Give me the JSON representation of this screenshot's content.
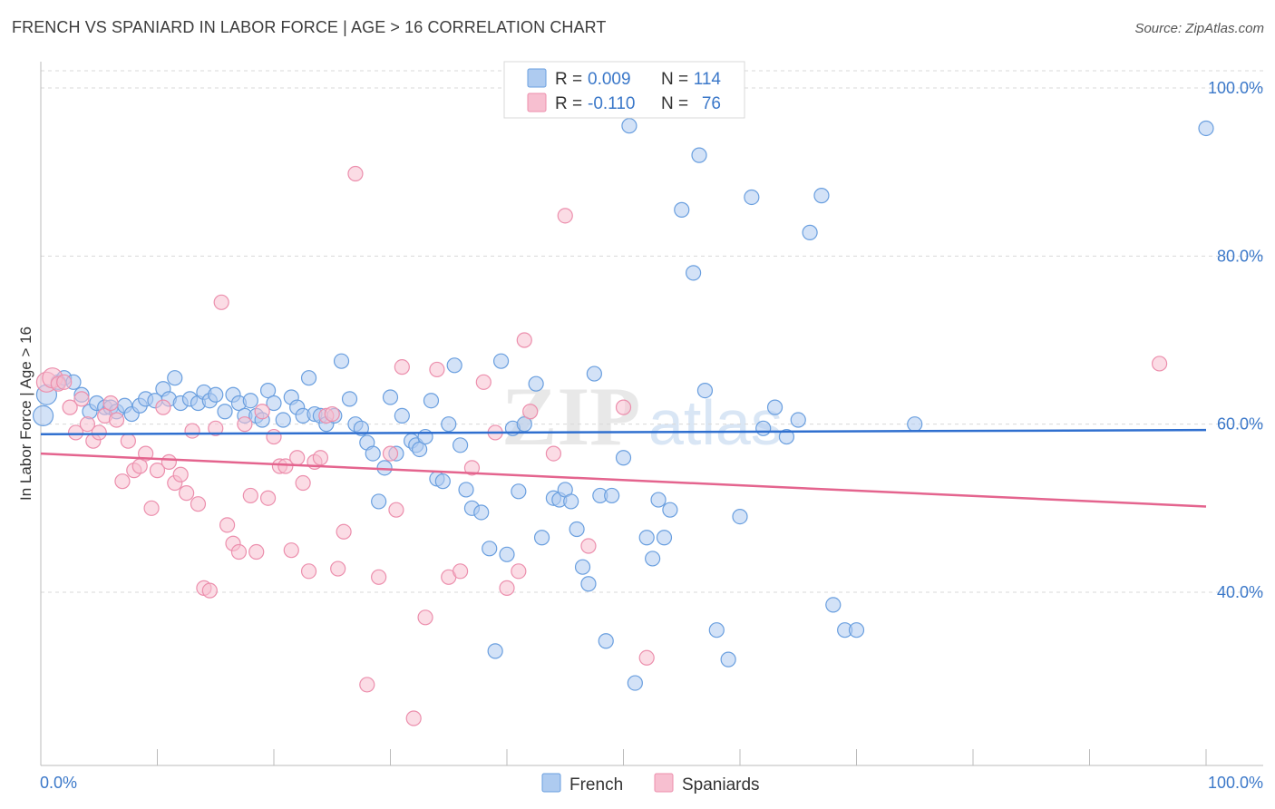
{
  "title": "FRENCH VS SPANIARD IN LABOR FORCE | AGE > 16 CORRELATION CHART",
  "source": "Source: ZipAtlas.com",
  "watermark": {
    "zip": "ZIP",
    "atlas": "atlas"
  },
  "colors": {
    "french_fill": "#aecbf0",
    "french_stroke": "#6a9fdf",
    "french_line": "#2f6fcf",
    "spaniard_fill": "#f7bfd0",
    "spaniard_stroke": "#ec8fad",
    "spaniard_line": "#e4648e",
    "axis_text": "#3b78c9",
    "grid": "#d9d9d9"
  },
  "legend": {
    "r_label": "R =",
    "n_label": "N =",
    "rows": [
      {
        "series": "French",
        "r": "0.009",
        "n": "114"
      },
      {
        "series": "Spaniards",
        "r": "-0.110",
        "n": "76"
      }
    ]
  },
  "bottom_legend": [
    "French",
    "Spaniards"
  ],
  "chart_data": {
    "type": "scatter",
    "title": "FRENCH VS SPANIARD IN LABOR FORCE | AGE > 16 CORRELATION CHART",
    "xlabel": "",
    "ylabel": "In Labor Force | Age > 16",
    "xlim": [
      0,
      100
    ],
    "ylim": [
      20,
      102
    ],
    "x_tick_labels": [
      "0.0%",
      "100.0%"
    ],
    "y_ticks": [
      40,
      60,
      80,
      100
    ],
    "y_tick_labels": [
      "40.0%",
      "60.0%",
      "80.0%",
      "100.0%"
    ],
    "grid": true,
    "legend_position": "top-center",
    "series": [
      {
        "name": "French",
        "r": 0.009,
        "n": 114,
        "trend": {
          "x": [
            0,
            100
          ],
          "y": [
            58.8,
            59.3
          ]
        },
        "points": [
          [
            0.2,
            61
          ],
          [
            0.5,
            63.5
          ],
          [
            1.5,
            65
          ],
          [
            2,
            65.5
          ],
          [
            2.8,
            65
          ],
          [
            3.5,
            63.5
          ],
          [
            4.2,
            61.5
          ],
          [
            4.8,
            62.5
          ],
          [
            5.5,
            62
          ],
          [
            6,
            62
          ],
          [
            6.5,
            61.5
          ],
          [
            7.2,
            62.2
          ],
          [
            7.8,
            61.2
          ],
          [
            8.5,
            62.2
          ],
          [
            9,
            63
          ],
          [
            9.8,
            62.8
          ],
          [
            10.5,
            64.2
          ],
          [
            11,
            63
          ],
          [
            11.5,
            65.5
          ],
          [
            12,
            62.5
          ],
          [
            12.8,
            63
          ],
          [
            13.5,
            62.5
          ],
          [
            14,
            63.8
          ],
          [
            14.5,
            62.8
          ],
          [
            15,
            63.5
          ],
          [
            15.8,
            61.5
          ],
          [
            16.5,
            63.5
          ],
          [
            17,
            62.5
          ],
          [
            17.5,
            61
          ],
          [
            18,
            62.8
          ],
          [
            18.5,
            61
          ],
          [
            19,
            60.5
          ],
          [
            19.5,
            64
          ],
          [
            20,
            62.5
          ],
          [
            20.8,
            60.5
          ],
          [
            21.5,
            63.2
          ],
          [
            22,
            62
          ],
          [
            22.5,
            61
          ],
          [
            23,
            65.5
          ],
          [
            23.5,
            61.2
          ],
          [
            24,
            61
          ],
          [
            24.5,
            60
          ],
          [
            25.2,
            61
          ],
          [
            25.8,
            67.5
          ],
          [
            26.5,
            63
          ],
          [
            27,
            60
          ],
          [
            27.5,
            59.5
          ],
          [
            28,
            57.8
          ],
          [
            28.5,
            56.5
          ],
          [
            29,
            50.8
          ],
          [
            29.5,
            54.8
          ],
          [
            30,
            63.2
          ],
          [
            30.5,
            56.5
          ],
          [
            31,
            61
          ],
          [
            31.8,
            58
          ],
          [
            32.2,
            57.5
          ],
          [
            32.5,
            57
          ],
          [
            33,
            58.5
          ],
          [
            33.5,
            62.8
          ],
          [
            34,
            53.5
          ],
          [
            34.5,
            53.2
          ],
          [
            35,
            60
          ],
          [
            35.5,
            67
          ],
          [
            36,
            57.5
          ],
          [
            36.5,
            52.2
          ],
          [
            37,
            50
          ],
          [
            37.8,
            49.5
          ],
          [
            38.5,
            45.2
          ],
          [
            39,
            33
          ],
          [
            39.5,
            67.5
          ],
          [
            40,
            44.5
          ],
          [
            40.5,
            59.5
          ],
          [
            41,
            52
          ],
          [
            41.5,
            60
          ],
          [
            42.5,
            64.8
          ],
          [
            43,
            46.5
          ],
          [
            44,
            51.2
          ],
          [
            44.5,
            51
          ],
          [
            45,
            52.2
          ],
          [
            45.5,
            50.8
          ],
          [
            46,
            47.5
          ],
          [
            46.5,
            43
          ],
          [
            47,
            41
          ],
          [
            47.5,
            66
          ],
          [
            48,
            51.5
          ],
          [
            48.5,
            34.2
          ],
          [
            49,
            51.5
          ],
          [
            50,
            56
          ],
          [
            50.5,
            95.5
          ],
          [
            51,
            29.2
          ],
          [
            52,
            46.5
          ],
          [
            52.5,
            44
          ],
          [
            53,
            51
          ],
          [
            53.5,
            46.5
          ],
          [
            54,
            49.8
          ],
          [
            55,
            85.5
          ],
          [
            56,
            78
          ],
          [
            56.5,
            92
          ],
          [
            57,
            64
          ],
          [
            58,
            35.5
          ],
          [
            59,
            32
          ],
          [
            60,
            49
          ],
          [
            61,
            87
          ],
          [
            62,
            59.5
          ],
          [
            63,
            62
          ],
          [
            64,
            58.5
          ],
          [
            65,
            60.5
          ],
          [
            66,
            82.8
          ],
          [
            67,
            87.2
          ],
          [
            68,
            38.5
          ],
          [
            69,
            35.5
          ],
          [
            70,
            35.5
          ],
          [
            75,
            60
          ],
          [
            100,
            95.2
          ]
        ]
      },
      {
        "name": "Spaniards",
        "r": -0.11,
        "n": 76,
        "trend": {
          "x": [
            0,
            100
          ],
          "y": [
            56.5,
            50.2
          ]
        },
        "points": [
          [
            0.5,
            65
          ],
          [
            1,
            65.5
          ],
          [
            1.5,
            64.8
          ],
          [
            2,
            65
          ],
          [
            2.5,
            62
          ],
          [
            3,
            59
          ],
          [
            3.5,
            63
          ],
          [
            4,
            60
          ],
          [
            4.5,
            58
          ],
          [
            5,
            59
          ],
          [
            5.5,
            61
          ],
          [
            6,
            62.5
          ],
          [
            6.5,
            60.5
          ],
          [
            7,
            53.2
          ],
          [
            7.5,
            58
          ],
          [
            8,
            54.5
          ],
          [
            8.5,
            55
          ],
          [
            9,
            56.5
          ],
          [
            9.5,
            50
          ],
          [
            10,
            54.5
          ],
          [
            10.5,
            62
          ],
          [
            11,
            55.5
          ],
          [
            11.5,
            53
          ],
          [
            12,
            54
          ],
          [
            12.5,
            51.8
          ],
          [
            13,
            59.2
          ],
          [
            13.5,
            50.5
          ],
          [
            14,
            40.5
          ],
          [
            14.5,
            40.2
          ],
          [
            15,
            59.5
          ],
          [
            15.5,
            74.5
          ],
          [
            16,
            48
          ],
          [
            16.5,
            45.8
          ],
          [
            17,
            44.8
          ],
          [
            17.5,
            60
          ],
          [
            18,
            51.5
          ],
          [
            18.5,
            44.8
          ],
          [
            19,
            61.5
          ],
          [
            19.5,
            51.2
          ],
          [
            20,
            58.5
          ],
          [
            20.5,
            55
          ],
          [
            21,
            55
          ],
          [
            21.5,
            45
          ],
          [
            22,
            56
          ],
          [
            22.5,
            53
          ],
          [
            23,
            42.5
          ],
          [
            23.5,
            55.5
          ],
          [
            24,
            56
          ],
          [
            24.5,
            61
          ],
          [
            25,
            61.2
          ],
          [
            25.5,
            42.8
          ],
          [
            26,
            47.2
          ],
          [
            27,
            89.8
          ],
          [
            28,
            29
          ],
          [
            29,
            41.8
          ],
          [
            30,
            56.5
          ],
          [
            30.5,
            49.8
          ],
          [
            31,
            66.8
          ],
          [
            32,
            25
          ],
          [
            33,
            37
          ],
          [
            34,
            66.5
          ],
          [
            35,
            41.8
          ],
          [
            36,
            42.5
          ],
          [
            37,
            54.8
          ],
          [
            38,
            65
          ],
          [
            39,
            59
          ],
          [
            40,
            40.5
          ],
          [
            41,
            42.5
          ],
          [
            41.5,
            70
          ],
          [
            42,
            61.5
          ],
          [
            44,
            56.5
          ],
          [
            45,
            84.8
          ],
          [
            47,
            45.5
          ],
          [
            50,
            62
          ],
          [
            52,
            32.2
          ],
          [
            96,
            67.2
          ]
        ]
      }
    ]
  }
}
